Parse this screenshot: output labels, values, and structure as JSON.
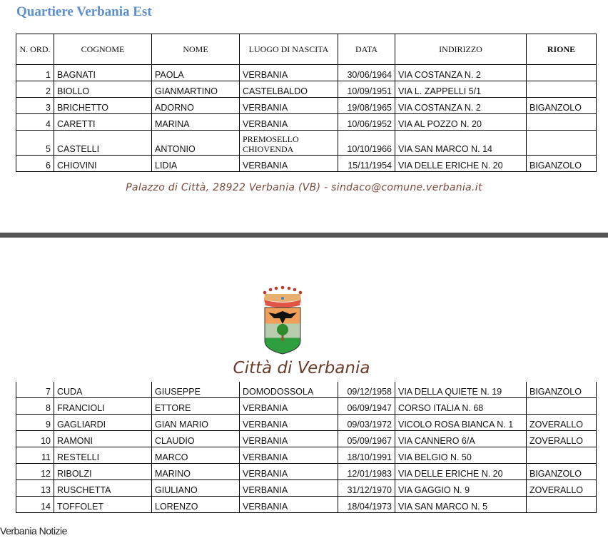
{
  "title": "Quartiere Verbania Est",
  "headers": [
    "N. ORD.",
    "COGNOME",
    "NOME",
    "LUOGO DI NASCITA",
    "DATA",
    "INDIRIZZO",
    "RIONE"
  ],
  "rows_page1": [
    {
      "n": "1",
      "cognome": "BAGNATI",
      "nome": "PAOLA",
      "luogo": "VERBANIA",
      "data": "30/06/1964",
      "indirizzo": "VIA COSTANZA N. 2",
      "rione": ""
    },
    {
      "n": "2",
      "cognome": "BIOLLO",
      "nome": "GIANMARTINO",
      "luogo": "CASTELBALDO",
      "data": "10/09/1951",
      "indirizzo": "VIA L. ZAPPELLI 5/1",
      "rione": ""
    },
    {
      "n": "3",
      "cognome": "BRICHETTO",
      "nome": "ADORNO",
      "luogo": "VERBANIA",
      "data": "19/08/1965",
      "indirizzo": "VIA COSTANZA N. 2",
      "rione": "BIGANZOLO"
    },
    {
      "n": "4",
      "cognome": "CARETTI",
      "nome": "MARINA",
      "luogo": "VERBANIA",
      "data": "10/06/1952",
      "indirizzo": "VIA AL POZZO N. 20",
      "rione": ""
    },
    {
      "n": "5",
      "cognome": "CASTELLI",
      "nome": "ANTONIO",
      "luogo_line1": "PREMOSELLO",
      "luogo_line2": "CHIOVENDA",
      "data": "10/10/1966",
      "indirizzo": "VIA SAN MARCO N. 14",
      "rione": ""
    },
    {
      "n": "6",
      "cognome": "CHIOVINI",
      "nome": "LIDIA",
      "luogo": "VERBANIA",
      "data": "15/11/1954",
      "indirizzo": "VIA DELLE ERICHE N. 20",
      "rione": "BIGANZOLO"
    }
  ],
  "footer_address": "Palazzo di Città, 28922 Verbania (VB) - sindaco@comune.verbania.it",
  "city_name": "Città di Verbania",
  "rows_page2": [
    {
      "n": "7",
      "cognome": "CUDA",
      "nome": "GIUSEPPE",
      "luogo": "DOMODOSSOLA",
      "data": "09/12/1958",
      "indirizzo": "VIA DELLA QUIETE N. 19",
      "rione": "BIGANZOLO"
    },
    {
      "n": "8",
      "cognome": "FRANCIOLI",
      "nome": "ETTORE",
      "luogo": "VERBANIA",
      "data": "06/09/1947",
      "indirizzo": "CORSO ITALIA N. 68",
      "rione": ""
    },
    {
      "n": "9",
      "cognome": "GAGLIARDI",
      "nome": "GIAN MARIO",
      "luogo": "VERBANIA",
      "data": "09/03/1972",
      "indirizzo": "VICOLO ROSA BIANCA N. 1",
      "rione": "ZOVERALLO"
    },
    {
      "n": "10",
      "cognome": "RAMONI",
      "nome": "CLAUDIO",
      "luogo": "VERBANIA",
      "data": "05/09/1967",
      "indirizzo": "VIA CANNERO 6/A",
      "rione": "ZOVERALLO"
    },
    {
      "n": "11",
      "cognome": "RESTELLI",
      "nome": "MARCO",
      "luogo": "VERBANIA",
      "data": "18/10/1991",
      "indirizzo": "VIA BELGIO N. 50",
      "rione": ""
    },
    {
      "n": "12",
      "cognome": "RIBOLZI",
      "nome": "MARINO",
      "luogo": "VERBANIA",
      "data": "12/01/1983",
      "indirizzo": "VIA DELLE ERICHE N. 20",
      "rione": "BIGANZOLO"
    },
    {
      "n": "13",
      "cognome": "RUSCHETTA",
      "nome": "GIULIANO",
      "luogo": "VERBANIA",
      "data": "31/12/1970",
      "indirizzo": "VIA GAGGIO N. 9",
      "rione": "ZOVERALLO"
    },
    {
      "n": "14",
      "cognome": "TOFFOLET",
      "nome": "LORENZO",
      "luogo": "VERBANIA",
      "data": "18/04/1973",
      "indirizzo": "VIA SAN MARCO N. 5",
      "rione": ""
    }
  ],
  "source_label": "Verbania Notizie"
}
